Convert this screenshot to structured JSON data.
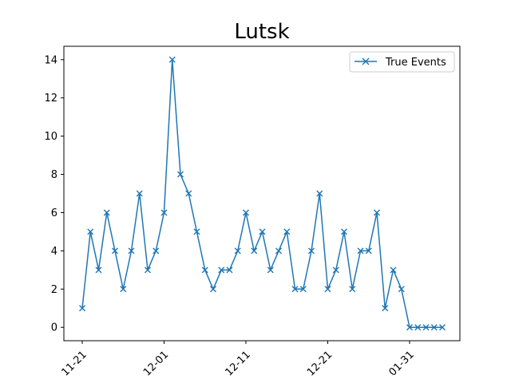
{
  "chart_data": {
    "type": "line",
    "title": "Lutsk",
    "xlabel": "",
    "ylabel": "",
    "x_tick_labels": [
      "11-21",
      "12-01",
      "12-11",
      "12-21",
      "01-31"
    ],
    "y_tick_labels": [
      "0",
      "2",
      "4",
      "6",
      "8",
      "10",
      "12",
      "14"
    ],
    "y_ticks": [
      0,
      2,
      4,
      6,
      8,
      10,
      12,
      14
    ],
    "ylim": [
      -0.7,
      14.7
    ],
    "grid": false,
    "legend_position": "top-right",
    "series": [
      {
        "name": "True Events",
        "color": "#1f77b4",
        "marker": "x",
        "values": [
          1,
          5,
          3,
          6,
          4,
          2,
          4,
          7,
          3,
          4,
          6,
          14,
          8,
          7,
          5,
          3,
          2,
          3,
          3,
          4,
          6,
          4,
          5,
          3,
          4,
          5,
          2,
          2,
          4,
          7,
          2,
          3,
          5,
          2,
          4,
          4,
          6,
          1,
          3,
          2,
          0,
          0,
          0,
          0,
          0
        ]
      }
    ]
  }
}
